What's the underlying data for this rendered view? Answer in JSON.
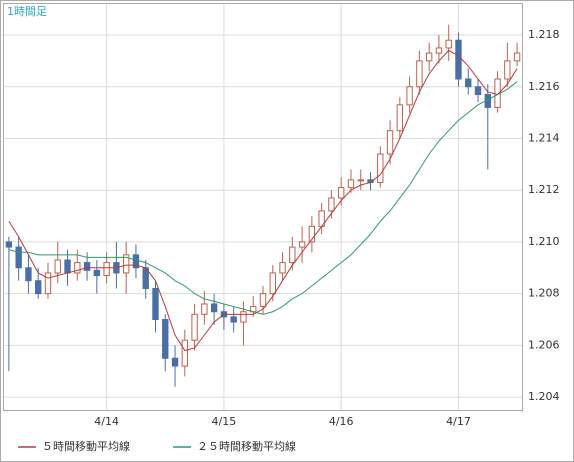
{
  "chart_data": {
    "type": "candlestick",
    "title": "1時間足",
    "categories": [
      null,
      null,
      null,
      null,
      null,
      null,
      null,
      null,
      null,
      null,
      "4/14",
      null,
      null,
      null,
      null,
      null,
      null,
      null,
      null,
      null,
      null,
      null,
      "4/15",
      null,
      null,
      null,
      null,
      null,
      null,
      null,
      null,
      null,
      null,
      null,
      "4/16",
      null,
      null,
      null,
      null,
      null,
      null,
      null,
      null,
      null,
      null,
      null,
      "4/17",
      null,
      null,
      null,
      null,
      null,
      null
    ],
    "candles": {
      "up_color": "#c0604f",
      "down_color": "#4a6ea8",
      "open": [
        1.21,
        1.2098,
        1.209,
        1.2085,
        1.208,
        1.2088,
        1.2093,
        1.2088,
        1.2092,
        1.2089,
        1.2087,
        1.2092,
        1.2088,
        1.2095,
        1.209,
        1.2082,
        1.207,
        1.2055,
        1.2052,
        1.2062,
        1.2072,
        1.2076,
        1.2073,
        1.2071,
        1.2069,
        1.2073,
        1.2075,
        1.208,
        1.2088,
        1.2092,
        1.2098,
        1.21,
        1.2106,
        1.2112,
        1.2117,
        1.2121,
        1.2124,
        1.2124,
        1.2123,
        1.2134,
        1.2143,
        1.2153,
        1.216,
        1.217,
        1.2173,
        1.2175,
        1.2178,
        1.2163,
        1.216,
        1.2157,
        1.2152,
        1.2163,
        1.217
      ],
      "high": [
        1.2102,
        1.2102,
        1.2095,
        1.209,
        1.2092,
        1.21,
        1.2097,
        1.2097,
        1.2096,
        1.2093,
        1.2096,
        1.21,
        1.21,
        1.2099,
        1.2093,
        1.2085,
        1.2072,
        1.206,
        1.2066,
        1.2076,
        1.2081,
        1.208,
        1.2076,
        1.2075,
        1.2077,
        1.2079,
        1.2083,
        1.2091,
        1.2096,
        1.2102,
        1.2106,
        1.211,
        1.2115,
        1.212,
        1.2125,
        1.2128,
        1.2128,
        1.2127,
        1.2137,
        1.2147,
        1.2156,
        1.2164,
        1.2174,
        1.2177,
        1.218,
        1.2184,
        1.2181,
        1.2167,
        1.2163,
        1.2161,
        1.2166,
        1.2177,
        1.2177
      ],
      "low": [
        1.205,
        1.2085,
        1.208,
        1.2078,
        1.2078,
        1.2084,
        1.2083,
        1.2085,
        1.2085,
        1.208,
        1.2084,
        1.2082,
        1.208,
        1.2086,
        1.2078,
        1.2065,
        1.205,
        1.2044,
        1.2048,
        1.2058,
        1.2068,
        1.2068,
        1.2066,
        1.2065,
        1.206,
        1.2071,
        1.2072,
        1.2077,
        1.2085,
        1.2089,
        1.2092,
        1.2096,
        1.2103,
        1.2109,
        1.2114,
        1.2119,
        1.212,
        1.212,
        1.2121,
        1.213,
        1.214,
        1.215,
        1.2157,
        1.2166,
        1.2169,
        1.217,
        1.216,
        1.2157,
        1.2154,
        1.2128,
        1.215,
        1.216,
        1.2168
      ],
      "close": [
        1.2098,
        1.209,
        1.2085,
        1.208,
        1.2088,
        1.2093,
        1.2088,
        1.2092,
        1.2089,
        1.2087,
        1.2092,
        1.2088,
        1.2095,
        1.209,
        1.2082,
        1.207,
        1.2055,
        1.2052,
        1.2062,
        1.2072,
        1.2076,
        1.2073,
        1.2071,
        1.2069,
        1.2073,
        1.2075,
        1.208,
        1.2088,
        1.2092,
        1.2098,
        1.21,
        1.2106,
        1.2112,
        1.2117,
        1.2121,
        1.2124,
        1.2124,
        1.2123,
        1.2134,
        1.2143,
        1.2153,
        1.216,
        1.217,
        1.2173,
        1.2175,
        1.2178,
        1.2163,
        1.216,
        1.2157,
        1.2152,
        1.2163,
        1.217,
        1.2173
      ]
    },
    "series": [
      {
        "name": "５時間移動平均線",
        "color": "#b83a3a",
        "values": [
          1.2108,
          1.2102,
          1.2095,
          1.2088,
          1.2086,
          1.2087,
          1.2088,
          1.2089,
          1.209,
          1.209,
          1.209,
          1.209,
          1.2091,
          1.2091,
          1.209,
          1.2085,
          1.2075,
          1.2064,
          1.2058,
          1.2059,
          1.2064,
          1.2069,
          1.2072,
          1.2072,
          1.2072,
          1.2072,
          1.2074,
          1.2079,
          1.2085,
          1.2091,
          1.2096,
          1.2101,
          1.2106,
          1.2111,
          1.2116,
          1.212,
          1.2122,
          1.2123,
          1.2126,
          1.2132,
          1.214,
          1.2149,
          1.2158,
          1.2165,
          1.217,
          1.2174,
          1.2172,
          1.2168,
          1.2163,
          1.2158,
          1.2157,
          1.2161,
          1.2167
        ]
      },
      {
        "name": "２５時間移動平均線",
        "color": "#2e9a6a",
        "values": [
          1.2097,
          1.2096,
          1.2096,
          1.2095,
          1.2095,
          1.2095,
          1.2095,
          1.2095,
          1.2094,
          1.2094,
          1.2094,
          1.2094,
          1.2094,
          1.2093,
          1.2092,
          1.209,
          1.2088,
          1.2085,
          1.2083,
          1.208,
          1.2078,
          1.2077,
          1.2076,
          1.2075,
          1.2074,
          1.2073,
          1.2072,
          1.2073,
          1.2075,
          1.2078,
          1.208,
          1.2083,
          1.2086,
          1.2089,
          1.2092,
          1.2095,
          1.2099,
          1.2103,
          1.2108,
          1.2112,
          1.2117,
          1.2122,
          1.2128,
          1.2134,
          1.2139,
          1.2143,
          1.2147,
          1.215,
          1.2153,
          1.2155,
          1.2157,
          1.2159,
          1.2162
        ]
      }
    ],
    "ylim": [
      1.2035,
      1.2192
    ],
    "yticks": [
      1.204,
      1.206,
      1.208,
      {
        "value": 1.21,
        "label": "1.210"
      },
      1.212,
      1.214,
      1.216,
      1.218
    ],
    "grid": true
  }
}
